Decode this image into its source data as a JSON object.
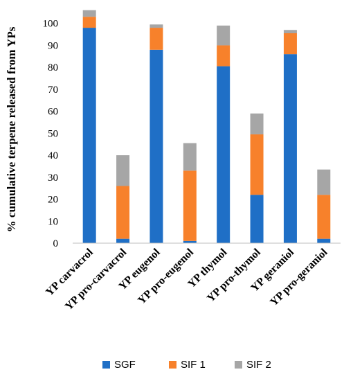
{
  "chart_data": {
    "type": "bar",
    "stacked": true,
    "title": "",
    "xlabel": "",
    "ylabel": "% cumulative terpene released from YPs",
    "ylim": [
      0,
      110
    ],
    "yticks": [
      0,
      10,
      20,
      30,
      40,
      50,
      60,
      70,
      80,
      90,
      100
    ],
    "grid": false,
    "legend_position": "bottom",
    "categories": [
      "YP carvacrol",
      "YP pro-carvacrol",
      "YP eugenol",
      "YP pro-eugenol",
      "YP thymol",
      "YP pro-thymol",
      "YP geraniol",
      "YP pro-geraniol"
    ],
    "series": [
      {
        "name": "SGF",
        "color": "#1f6fc6",
        "values": [
          98,
          2,
          88,
          1,
          80.5,
          22,
          86,
          2
        ]
      },
      {
        "name": "SIF 1",
        "color": "#f7812b",
        "values": [
          5,
          24,
          10,
          32,
          9.5,
          27.5,
          9.5,
          20
        ]
      },
      {
        "name": "SIF 2",
        "color": "#a6a6a6",
        "values": [
          3,
          14,
          1.5,
          12.5,
          9,
          9.5,
          1.5,
          11.5
        ]
      }
    ]
  }
}
